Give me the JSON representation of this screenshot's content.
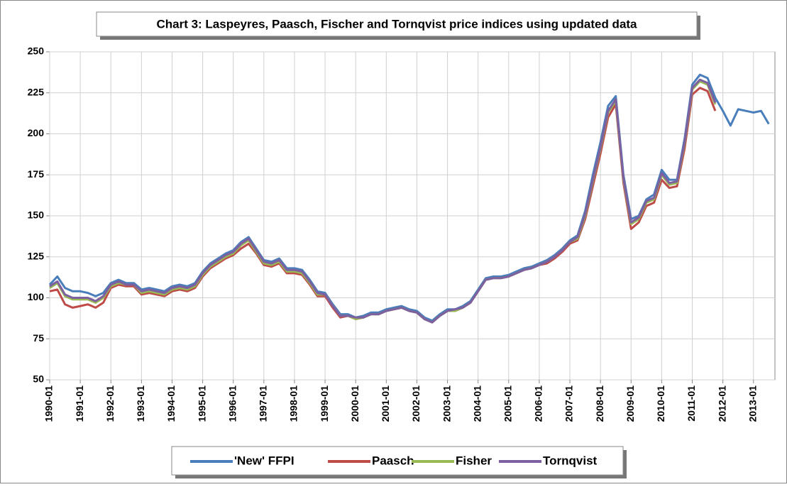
{
  "chart_data": {
    "type": "line",
    "title": "Chart  3: Laspeyres, Paasch, Fischer and Tornqvist price indices using updated data",
    "x": [
      "1990-01",
      "1990-04",
      "1990-07",
      "1990-10",
      "1991-01",
      "1991-04",
      "1991-07",
      "1991-10",
      "1992-01",
      "1992-04",
      "1992-07",
      "1992-10",
      "1993-01",
      "1993-04",
      "1993-07",
      "1993-10",
      "1994-01",
      "1994-04",
      "1994-07",
      "1994-10",
      "1995-01",
      "1995-04",
      "1995-07",
      "1995-10",
      "1996-01",
      "1996-04",
      "1996-07",
      "1996-10",
      "1997-01",
      "1997-04",
      "1997-07",
      "1997-10",
      "1998-01",
      "1998-04",
      "1998-07",
      "1998-10",
      "1999-01",
      "1999-04",
      "1999-07",
      "1999-10",
      "2000-01",
      "2000-04",
      "2000-07",
      "2000-10",
      "2001-01",
      "2001-04",
      "2001-07",
      "2001-10",
      "2002-01",
      "2002-04",
      "2002-07",
      "2002-10",
      "2003-01",
      "2003-04",
      "2003-07",
      "2003-10",
      "2004-01",
      "2004-04",
      "2004-07",
      "2004-10",
      "2005-01",
      "2005-04",
      "2005-07",
      "2005-10",
      "2006-01",
      "2006-04",
      "2006-07",
      "2006-10",
      "2007-01",
      "2007-04",
      "2007-07",
      "2007-10",
      "2008-01",
      "2008-04",
      "2008-07",
      "2008-10",
      "2009-01",
      "2009-04",
      "2009-07",
      "2009-10",
      "2010-01",
      "2010-04",
      "2010-07",
      "2010-10",
      "2011-01",
      "2011-04",
      "2011-07",
      "2011-10",
      "2012-01",
      "2012-04",
      "2012-07",
      "2012-10",
      "2013-01",
      "2013-04",
      "2013-07"
    ],
    "series": [
      {
        "name": "'New' FFPI",
        "color": "#4a7ebb",
        "values": [
          108,
          113,
          106,
          104,
          104,
          103,
          101,
          103,
          109,
          111,
          109,
          109,
          105,
          106,
          105,
          104,
          107,
          108,
          107,
          109,
          116,
          121,
          124,
          127,
          129,
          134,
          137,
          130,
          123,
          122,
          124,
          118,
          118,
          117,
          111,
          104,
          103,
          96,
          90,
          90,
          88,
          89,
          91,
          91,
          93,
          94,
          95,
          93,
          92,
          88,
          86,
          90,
          93,
          93,
          95,
          98,
          105,
          112,
          113,
          113,
          114,
          116,
          118,
          119,
          121,
          123,
          126,
          130,
          135,
          138,
          153,
          175,
          195,
          217,
          223,
          175,
          148,
          150,
          160,
          163,
          178,
          172,
          172,
          197,
          230,
          236,
          234,
          222,
          214,
          205,
          215,
          214,
          213,
          214,
          206
        ]
      },
      {
        "name": "Paasch",
        "color": "#be4b48",
        "values": [
          104,
          105,
          96,
          94,
          95,
          96,
          94,
          97,
          106,
          108,
          107,
          107,
          102,
          103,
          102,
          101,
          104,
          105,
          104,
          106,
          113,
          118,
          121,
          124,
          126,
          130,
          133,
          127,
          120,
          119,
          121,
          115,
          115,
          114,
          108,
          101,
          101,
          94,
          88,
          89,
          87,
          88,
          90,
          90,
          92,
          93,
          94,
          92,
          91,
          87,
          85,
          89,
          92,
          92,
          94,
          97,
          104,
          111,
          112,
          112,
          113,
          115,
          117,
          118,
          120,
          121,
          124,
          128,
          133,
          135,
          148,
          168,
          188,
          210,
          218,
          170,
          142,
          146,
          156,
          158,
          172,
          167,
          168,
          191,
          224,
          228,
          226,
          214,
          null,
          null,
          null,
          null,
          null,
          null,
          null
        ]
      },
      {
        "name": "Fisher",
        "color": "#98b954",
        "values": [
          106,
          109,
          101,
          99,
          99,
          99,
          97,
          100,
          107,
          109,
          108,
          108,
          103,
          104,
          103,
          102,
          105,
          106,
          105,
          107,
          114,
          119,
          122,
          125,
          127,
          132,
          135,
          128,
          121,
          120,
          122,
          116,
          116,
          115,
          109,
          102,
          102,
          95,
          89,
          89,
          87,
          88,
          90,
          90,
          92,
          93,
          94,
          92,
          91,
          87,
          85,
          89,
          92,
          92,
          94,
          97,
          104,
          111,
          112,
          112,
          113,
          115,
          117,
          118,
          120,
          122,
          125,
          129,
          134,
          136,
          150,
          171,
          191,
          213,
          220,
          172,
          145,
          148,
          158,
          160,
          175,
          169,
          170,
          194,
          227,
          232,
          230,
          218,
          null,
          null,
          null,
          null,
          null,
          null,
          null
        ]
      },
      {
        "name": "Tornqvist",
        "color": "#7d60a0",
        "values": [
          107,
          110,
          102,
          100,
          100,
          100,
          98,
          101,
          108,
          110,
          108,
          108,
          104,
          105,
          104,
          103,
          106,
          107,
          106,
          108,
          115,
          120,
          123,
          126,
          128,
          133,
          136,
          129,
          122,
          121,
          123,
          117,
          117,
          116,
          110,
          103,
          102,
          95,
          89,
          89,
          88,
          88,
          90,
          90,
          92,
          93,
          94,
          92,
          91,
          87,
          85,
          89,
          92,
          93,
          94,
          97,
          104,
          111,
          112,
          112,
          113,
          115,
          117,
          118,
          120,
          122,
          125,
          129,
          134,
          137,
          151,
          172,
          192,
          214,
          221,
          173,
          146,
          149,
          159,
          161,
          176,
          170,
          171,
          195,
          228,
          233,
          231,
          219,
          null,
          null,
          null,
          null,
          null,
          null,
          null
        ]
      }
    ],
    "ylim": [
      50,
      250
    ],
    "yticks": [
      50,
      75,
      100,
      125,
      150,
      175,
      200,
      225,
      250
    ],
    "grid": true,
    "legend": "bottom"
  }
}
